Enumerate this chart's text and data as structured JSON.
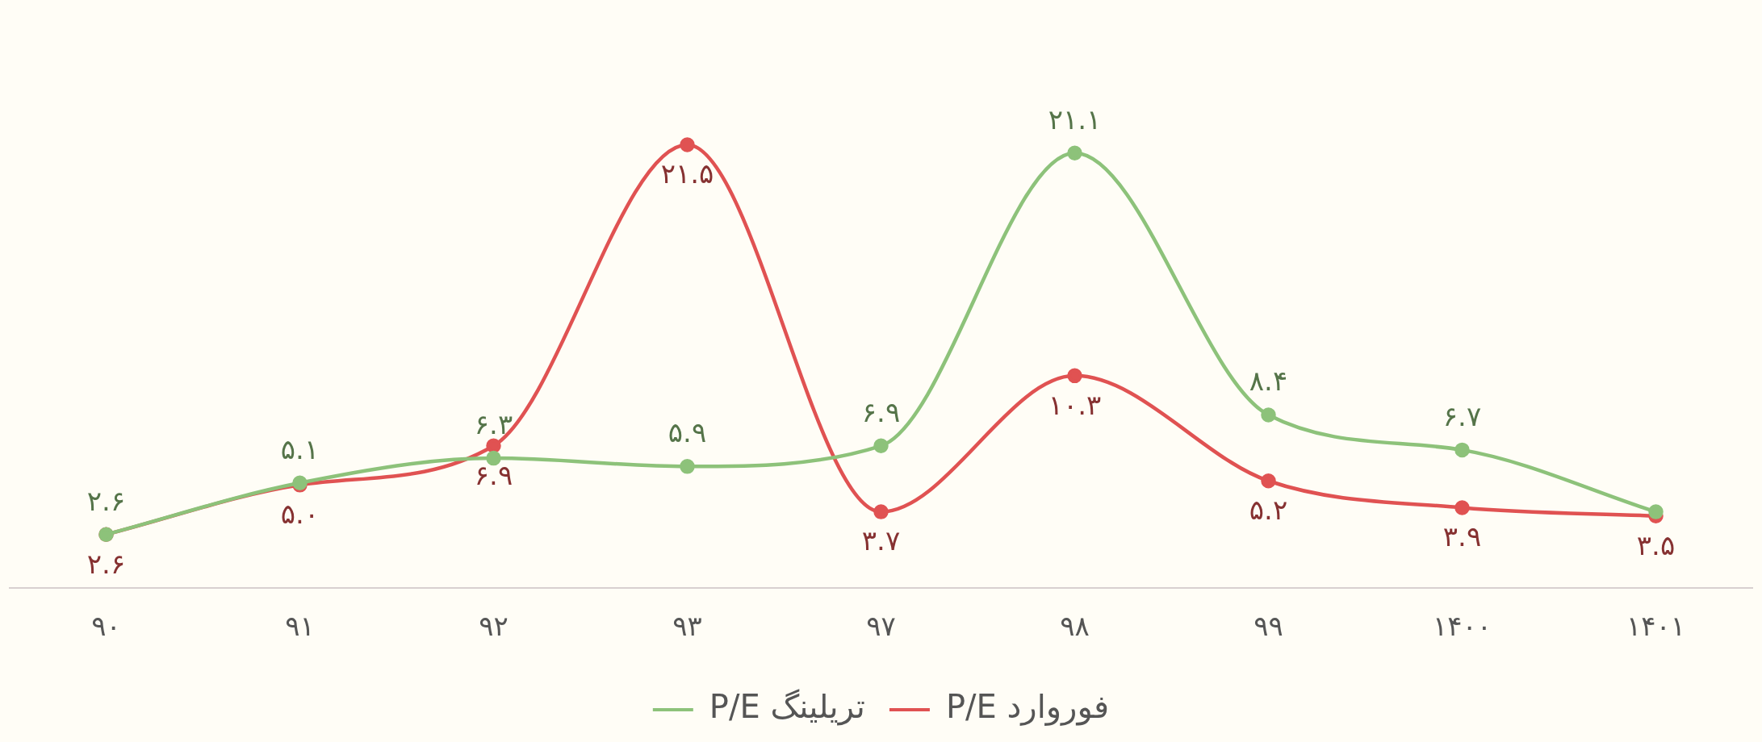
{
  "chart_data": {
    "type": "line",
    "categories": [
      "۹۰",
      "۹۱",
      "۹۲",
      "۹۳",
      "۹۷",
      "۹۸",
      "۹۹",
      "۱۴۰۰",
      "۱۴۰۱"
    ],
    "series": [
      {
        "name": "P/E تریلینگ",
        "color": "#8dc27a",
        "values": [
          2.6,
          5.1,
          6.3,
          5.9,
          6.9,
          21.1,
          8.4,
          6.7,
          3.7
        ],
        "value_labels": [
          "۲.۶",
          "۵.۱",
          "۶.۳",
          "۵.۹",
          "۶.۹",
          "۲۱.۱",
          "۸.۴",
          "۶.۷",
          null
        ]
      },
      {
        "name": "P/E فوروارد",
        "color": "#e05252",
        "values": [
          2.6,
          5.0,
          6.9,
          21.5,
          3.7,
          10.3,
          5.2,
          3.9,
          3.5
        ],
        "value_labels": [
          "۲.۶",
          "۵.۰",
          "۶.۹",
          "۲۱.۵",
          "۳.۷",
          "۱۰.۳",
          "۵.۲",
          "۳.۹",
          "۳.۵"
        ]
      }
    ],
    "tick_labels": "x",
    "grid": false,
    "legend": "bottom",
    "marker": "circle",
    "line_style": "solid"
  }
}
